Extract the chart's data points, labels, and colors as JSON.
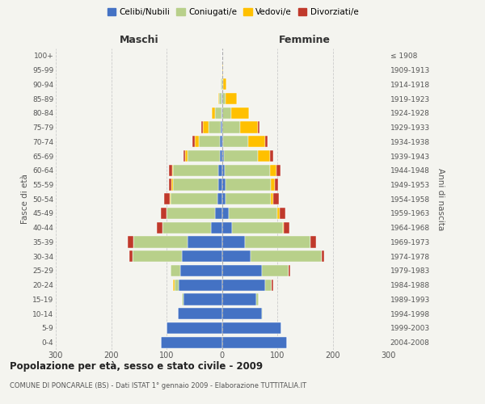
{
  "age_groups": [
    "0-4",
    "5-9",
    "10-14",
    "15-19",
    "20-24",
    "25-29",
    "30-34",
    "35-39",
    "40-44",
    "45-49",
    "50-54",
    "55-59",
    "60-64",
    "65-69",
    "70-74",
    "75-79",
    "80-84",
    "85-89",
    "90-94",
    "95-99",
    "100+"
  ],
  "birth_years": [
    "2004-2008",
    "1999-2003",
    "1994-1998",
    "1989-1993",
    "1984-1988",
    "1979-1983",
    "1974-1978",
    "1969-1973",
    "1964-1968",
    "1959-1963",
    "1954-1958",
    "1949-1953",
    "1944-1948",
    "1939-1943",
    "1934-1938",
    "1929-1933",
    "1924-1928",
    "1919-1923",
    "1914-1918",
    "1909-1913",
    "≤ 1908"
  ],
  "males": {
    "celibi": [
      110,
      100,
      80,
      70,
      78,
      75,
      72,
      62,
      20,
      12,
      8,
      7,
      6,
      4,
      3,
      2,
      1,
      1,
      0,
      0,
      0
    ],
    "coniugati": [
      0,
      0,
      0,
      2,
      8,
      18,
      90,
      98,
      88,
      88,
      85,
      82,
      82,
      58,
      38,
      22,
      12,
      4,
      2,
      0,
      0
    ],
    "vedovi": [
      0,
      0,
      0,
      0,
      2,
      0,
      0,
      0,
      0,
      0,
      1,
      2,
      2,
      5,
      8,
      10,
      5,
      2,
      0,
      0,
      0
    ],
    "divorziati": [
      0,
      0,
      0,
      0,
      0,
      0,
      5,
      10,
      10,
      10,
      10,
      5,
      5,
      3,
      5,
      3,
      0,
      0,
      0,
      0,
      0
    ]
  },
  "females": {
    "nubili": [
      118,
      108,
      72,
      62,
      78,
      72,
      52,
      42,
      18,
      12,
      6,
      6,
      5,
      3,
      2,
      1,
      1,
      1,
      0,
      0,
      0
    ],
    "coniugate": [
      0,
      0,
      2,
      4,
      12,
      48,
      128,
      118,
      92,
      88,
      82,
      82,
      82,
      62,
      46,
      32,
      16,
      6,
      2,
      0,
      0
    ],
    "vedove": [
      0,
      0,
      0,
      0,
      0,
      0,
      0,
      0,
      2,
      5,
      5,
      8,
      12,
      22,
      30,
      32,
      32,
      20,
      6,
      2,
      0
    ],
    "divorziate": [
      0,
      0,
      0,
      0,
      3,
      3,
      5,
      10,
      10,
      10,
      10,
      5,
      7,
      5,
      4,
      3,
      0,
      0,
      0,
      0,
      0
    ]
  },
  "colors": {
    "celibi": "#4472c4",
    "coniugati": "#b8d08a",
    "vedovi": "#ffc000",
    "divorziati": "#c0392b"
  },
  "xlim": 300,
  "title": "Popolazione per età, sesso e stato civile - 2009",
  "subtitle": "COMUNE DI PONCARALE (BS) - Dati ISTAT 1° gennaio 2009 - Elaborazione TUTTITALIA.IT",
  "ylabel_left": "Fasce di età",
  "ylabel_right": "Anni di nascita",
  "label_maschi": "Maschi",
  "label_femmine": "Femmine",
  "bg_color": "#f4f4ef",
  "grid_color": "#cccccc"
}
